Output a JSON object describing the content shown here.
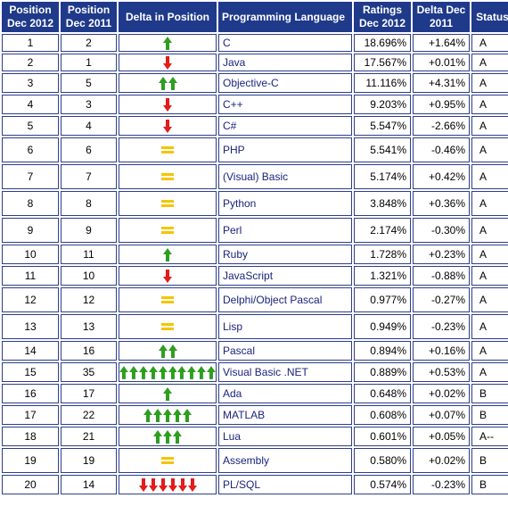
{
  "headers": {
    "pos2012": "Position Dec 2012",
    "pos2011": "Position Dec 2011",
    "delta_pos": "Delta in Position",
    "lang": "Programming Language",
    "ratings": "Ratings Dec 2012",
    "delta": "Delta Dec 2011",
    "status": "Status"
  },
  "colors": {
    "header_bg": "#1f3a8a",
    "up": "#2e9e1f",
    "down": "#e31b1b",
    "same": "#f5c400",
    "lang_text": "#1a237e"
  },
  "rows": [
    {
      "pos2012": "1",
      "pos2011": "2",
      "trend": "up",
      "count": 1,
      "lang": "C",
      "rating": "18.696%",
      "delta": "+1.64%",
      "status": "A"
    },
    {
      "pos2012": "2",
      "pos2011": "1",
      "trend": "down",
      "count": 1,
      "lang": "Java",
      "rating": "17.567%",
      "delta": "+0.01%",
      "status": "A"
    },
    {
      "pos2012": "3",
      "pos2011": "5",
      "trend": "up",
      "count": 2,
      "lang": "Objective-C",
      "rating": "11.116%",
      "delta": "+4.31%",
      "status": "A"
    },
    {
      "pos2012": "4",
      "pos2011": "3",
      "trend": "down",
      "count": 1,
      "lang": "C++",
      "rating": "9.203%",
      "delta": "+0.95%",
      "status": "A"
    },
    {
      "pos2012": "5",
      "pos2011": "4",
      "trend": "down",
      "count": 1,
      "lang": "C#",
      "rating": "5.547%",
      "delta": "-2.66%",
      "status": "A"
    },
    {
      "pos2012": "6",
      "pos2011": "6",
      "trend": "same",
      "count": 1,
      "lang": "PHP",
      "rating": "5.541%",
      "delta": "-0.46%",
      "status": "A"
    },
    {
      "pos2012": "7",
      "pos2011": "7",
      "trend": "same",
      "count": 1,
      "lang": "(Visual) Basic",
      "rating": "5.174%",
      "delta": "+0.42%",
      "status": "A"
    },
    {
      "pos2012": "8",
      "pos2011": "8",
      "trend": "same",
      "count": 1,
      "lang": "Python",
      "rating": "3.848%",
      "delta": "+0.36%",
      "status": "A"
    },
    {
      "pos2012": "9",
      "pos2011": "9",
      "trend": "same",
      "count": 1,
      "lang": "Perl",
      "rating": "2.174%",
      "delta": "-0.30%",
      "status": "A"
    },
    {
      "pos2012": "10",
      "pos2011": "11",
      "trend": "up",
      "count": 1,
      "lang": "Ruby",
      "rating": "1.728%",
      "delta": "+0.23%",
      "status": "A"
    },
    {
      "pos2012": "11",
      "pos2011": "10",
      "trend": "down",
      "count": 1,
      "lang": "JavaScript",
      "rating": "1.321%",
      "delta": "-0.88%",
      "status": "A"
    },
    {
      "pos2012": "12",
      "pos2011": "12",
      "trend": "same",
      "count": 1,
      "lang": "Delphi/Object Pascal",
      "rating": "0.977%",
      "delta": "-0.27%",
      "status": "A"
    },
    {
      "pos2012": "13",
      "pos2011": "13",
      "trend": "same",
      "count": 1,
      "lang": "Lisp",
      "rating": "0.949%",
      "delta": "-0.23%",
      "status": "A"
    },
    {
      "pos2012": "14",
      "pos2011": "16",
      "trend": "up",
      "count": 2,
      "lang": "Pascal",
      "rating": "0.894%",
      "delta": "+0.16%",
      "status": "A"
    },
    {
      "pos2012": "15",
      "pos2011": "35",
      "trend": "up",
      "count": 10,
      "lang": "Visual Basic .NET",
      "rating": "0.889%",
      "delta": "+0.53%",
      "status": "A"
    },
    {
      "pos2012": "16",
      "pos2011": "17",
      "trend": "up",
      "count": 1,
      "lang": "Ada",
      "rating": "0.648%",
      "delta": "+0.02%",
      "status": "B"
    },
    {
      "pos2012": "17",
      "pos2011": "22",
      "trend": "up",
      "count": 5,
      "lang": "MATLAB",
      "rating": "0.608%",
      "delta": "+0.07%",
      "status": "B"
    },
    {
      "pos2012": "18",
      "pos2011": "21",
      "trend": "up",
      "count": 3,
      "lang": "Lua",
      "rating": "0.601%",
      "delta": "+0.05%",
      "status": "A--"
    },
    {
      "pos2012": "19",
      "pos2011": "19",
      "trend": "same",
      "count": 1,
      "lang": "Assembly",
      "rating": "0.580%",
      "delta": "+0.02%",
      "status": "B"
    },
    {
      "pos2012": "20",
      "pos2011": "14",
      "trend": "down",
      "count": 6,
      "lang": "PL/SQL",
      "rating": "0.574%",
      "delta": "-0.23%",
      "status": "B"
    }
  ]
}
